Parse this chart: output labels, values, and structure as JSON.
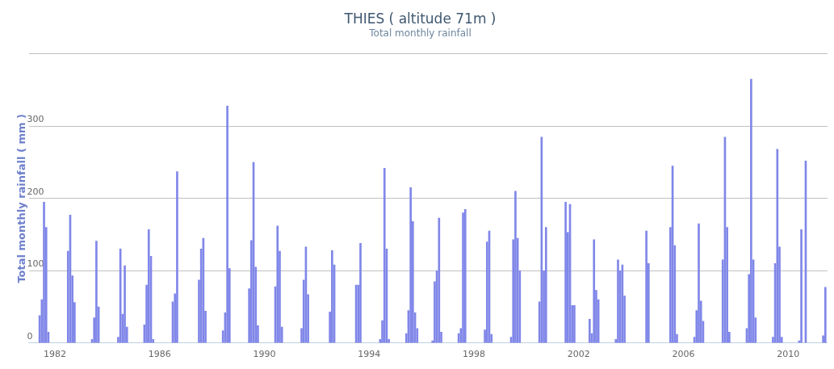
{
  "chart_data": {
    "type": "bar",
    "title": "THIES ( altitude 71m )",
    "subtitle": "Total monthly rainfall",
    "ylabel": "Total monthly rainfall ( mm )",
    "x": [
      "1981-06",
      "1981-07",
      "1981-08",
      "1981-09",
      "1981-10",
      "1982-07",
      "1982-08",
      "1982-09",
      "1982-10",
      "1983-06",
      "1983-07",
      "1983-08",
      "1983-09",
      "1984-06",
      "1984-07",
      "1984-08",
      "1984-09",
      "1984-10",
      "1985-06",
      "1985-07",
      "1985-08",
      "1985-09",
      "1985-10",
      "1986-07",
      "1986-08",
      "1986-09",
      "1987-07",
      "1987-08",
      "1987-09",
      "1987-10",
      "1988-06",
      "1988-07",
      "1988-08",
      "1988-09",
      "1989-06",
      "1989-07",
      "1989-08",
      "1989-09",
      "1989-10",
      "1990-06",
      "1990-07",
      "1990-08",
      "1990-09",
      "1991-06",
      "1991-07",
      "1991-08",
      "1991-09",
      "1992-07",
      "1992-08",
      "1992-09",
      "1993-07",
      "1993-08",
      "1993-09",
      "1994-06",
      "1994-07",
      "1994-08",
      "1994-09",
      "1994-10",
      "1995-06",
      "1995-07",
      "1995-08",
      "1995-09",
      "1995-10",
      "1995-11",
      "1996-06",
      "1996-07",
      "1996-08",
      "1996-09",
      "1996-10",
      "1997-06",
      "1997-07",
      "1997-08",
      "1997-09",
      "1998-06",
      "1998-07",
      "1998-08",
      "1998-09",
      "1999-06",
      "1999-07",
      "1999-08",
      "1999-09",
      "1999-10",
      "2000-07",
      "2000-08",
      "2000-09",
      "2000-10",
      "2001-07",
      "2001-08",
      "2001-09",
      "2001-10",
      "2001-11",
      "2002-06",
      "2002-07",
      "2002-08",
      "2002-09",
      "2002-10",
      "2003-06",
      "2003-07",
      "2003-08",
      "2003-09",
      "2003-10",
      "2004-08",
      "2004-09",
      "2004-10",
      "2005-07",
      "2005-08",
      "2005-09",
      "2005-10",
      "2006-06",
      "2006-07",
      "2006-08",
      "2006-09",
      "2006-10",
      "2007-07",
      "2007-08",
      "2007-09",
      "2007-10",
      "2008-06",
      "2008-07",
      "2008-08",
      "2008-09",
      "2008-10",
      "2009-06",
      "2009-07",
      "2009-08",
      "2009-09",
      "2009-10",
      "2010-06",
      "2010-07",
      "2010-09",
      "2010-10",
      "2011-05",
      "2011-06"
    ],
    "values": [
      38,
      60,
      195,
      160,
      15,
      127,
      177,
      93,
      56,
      5,
      35,
      141,
      50,
      8,
      130,
      40,
      107,
      22,
      25,
      80,
      157,
      120,
      5,
      57,
      68,
      237,
      87,
      130,
      145,
      44,
      17,
      42,
      328,
      103,
      75,
      142,
      250,
      105,
      24,
      78,
      162,
      127,
      22,
      20,
      87,
      133,
      67,
      43,
      128,
      108,
      80,
      80,
      138,
      5,
      31,
      242,
      130,
      5,
      13,
      45,
      215,
      168,
      42,
      20,
      3,
      85,
      100,
      173,
      15,
      13,
      20,
      180,
      185,
      18,
      140,
      155,
      12,
      8,
      143,
      210,
      145,
      100,
      57,
      285,
      100,
      160,
      195,
      153,
      192,
      52,
      52,
      33,
      13,
      143,
      73,
      60,
      5,
      115,
      100,
      108,
      65,
      155,
      110,
      null,
      160,
      245,
      135,
      12,
      8,
      45,
      165,
      58,
      30,
      115,
      285,
      160,
      15,
      20,
      95,
      365,
      115,
      35,
      8,
      110,
      268,
      133,
      8,
      3,
      157,
      252,
      null,
      10,
      77
    ],
    "color": "#8087e8",
    "xlim": [
      "1981-01",
      "2011-07"
    ],
    "xticks": [
      {
        "value": "1982",
        "label": "1982"
      },
      {
        "value": "1986",
        "label": "1986"
      },
      {
        "value": "1990",
        "label": "1990"
      },
      {
        "value": "1994",
        "label": "1994"
      },
      {
        "value": "1998",
        "label": "1998"
      },
      {
        "value": "2002",
        "label": "2002"
      },
      {
        "value": "2006",
        "label": "2006"
      },
      {
        "value": "2010",
        "label": "2010"
      }
    ],
    "ylim": [
      0,
      400
    ],
    "yticks": [
      0,
      100,
      200,
      300,
      {
        "value": 400,
        "label": null
      }
    ],
    "grid": "y",
    "legend": false
  }
}
